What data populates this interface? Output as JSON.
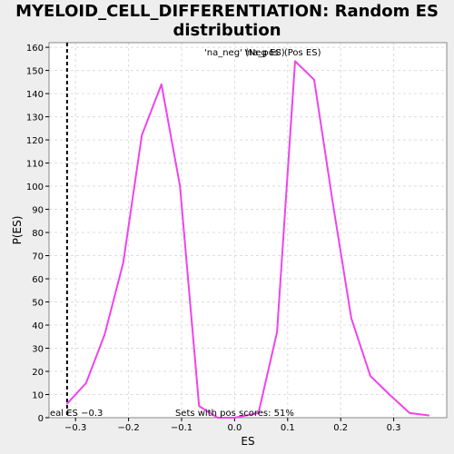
{
  "chart_data": {
    "type": "line",
    "title_line1": "MYELOID_CELL_DIFFERENTIATION: Random ES",
    "title_line2": "distribution",
    "xlabel": "ES",
    "ylabel": "P(ES)",
    "xlim": [
      -0.35,
      0.4
    ],
    "ylim": [
      0,
      162
    ],
    "x_ticks": [
      -0.3,
      -0.2,
      -0.1,
      0.0,
      0.1,
      0.2,
      0.3
    ],
    "x_tick_labels": [
      "−0.3",
      "−0.2",
      "−0.1",
      "0.0",
      "0.1",
      "0.2",
      "0.3"
    ],
    "y_ticks": [
      0,
      10,
      20,
      30,
      40,
      50,
      60,
      70,
      80,
      90,
      100,
      110,
      120,
      130,
      140,
      150,
      160
    ],
    "grid": true,
    "legend": {
      "placement": "top-center",
      "neg_label": "'na_neg' (Neg ES)",
      "pos_label": "'na_pos' (Pos ES)",
      "neg_color": "#4444cc",
      "pos_color": "#ff3333"
    },
    "series": [
      {
        "color": "#ee44ee",
        "x": [
          -0.316,
          -0.28,
          -0.245,
          -0.21,
          -0.175,
          -0.138,
          -0.103,
          -0.067,
          -0.032,
          0.0,
          0.045,
          0.08,
          0.114,
          0.15,
          0.185,
          0.22,
          0.256,
          0.292,
          0.33,
          0.366
        ],
        "y": [
          6,
          15,
          36,
          67,
          122,
          144,
          100,
          5,
          0,
          0,
          2,
          37,
          154,
          146,
          93,
          43,
          18,
          10,
          2,
          1
        ]
      }
    ],
    "marker_line": {
      "x": -0.316,
      "style": "dashed",
      "color": "#000000"
    },
    "annotations": {
      "real_es": "eal ES −0.3",
      "pos_scores": "Sets with pos scores: 51%"
    }
  },
  "colors": {
    "background": "#eeeeee",
    "plot_bg": "#ffffff",
    "grid": "#dddddd"
  }
}
